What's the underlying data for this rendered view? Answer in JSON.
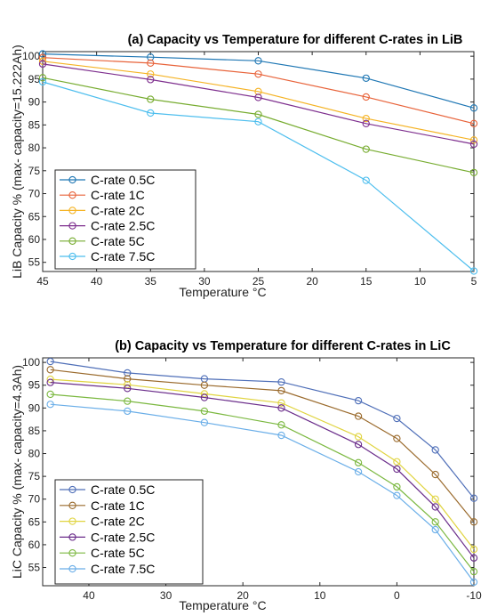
{
  "chart_data": [
    {
      "type": "line",
      "title": "(a) Capacity vs Temperature for different C-rates in LiB",
      "xlabel": "Temperature °C",
      "ylabel": "LiB Capacity % (max- capacity=15.222Ah)",
      "x": [
        45,
        35,
        25,
        15,
        5
      ],
      "xlim": [
        45,
        5
      ],
      "ylim": [
        53,
        101
      ],
      "xticks": [
        45,
        40,
        35,
        30,
        25,
        20,
        15,
        10,
        5
      ],
      "yticks": [
        55,
        60,
        65,
        70,
        75,
        80,
        85,
        90,
        95,
        100
      ],
      "legend_position": "bottom-left",
      "grid": false,
      "series": [
        {
          "name": "C-rate 0.5C",
          "color": "#1f77b4",
          "values": [
            100.5,
            99.8,
            99.0,
            95.2,
            88.7
          ]
        },
        {
          "name": "C-rate 1C",
          "color": "#e8633a",
          "values": [
            99.7,
            98.5,
            96.1,
            91.1,
            85.3
          ]
        },
        {
          "name": "C-rate 2C",
          "color": "#f5b324",
          "values": [
            98.9,
            96.1,
            92.3,
            86.4,
            81.7
          ]
        },
        {
          "name": "C-rate 2.5C",
          "color": "#7e2f8e",
          "values": [
            98.3,
            94.9,
            91.0,
            85.3,
            80.8
          ]
        },
        {
          "name": "C-rate 5C",
          "color": "#77ac30",
          "values": [
            95.3,
            90.6,
            87.3,
            79.7,
            74.6
          ]
        },
        {
          "name": "C-rate 7.5C",
          "color": "#4dbeee",
          "values": [
            94.4,
            87.6,
            85.7,
            72.9,
            53.1
          ]
        }
      ]
    },
    {
      "type": "line",
      "title": "(b) Capacity vs Temperature for different C-rates in LiC",
      "xlabel": "Temperature °C",
      "ylabel": "LiC Capacity % (max- capacity=4.3Ah)",
      "x": [
        45,
        35,
        25,
        15,
        5,
        0,
        -5,
        -10
      ],
      "xlim": [
        46,
        -10
      ],
      "ylim": [
        51,
        101
      ],
      "xticks": [
        40,
        30,
        20,
        10,
        0,
        -10
      ],
      "yticks": [
        55,
        60,
        65,
        70,
        75,
        80,
        85,
        90,
        95,
        100
      ],
      "legend_position": "bottom-left",
      "grid": false,
      "series": [
        {
          "name": "C-rate 0.5C",
          "color": "#4f6fb8",
          "values": [
            100.2,
            97.7,
            96.4,
            95.7,
            91.6,
            87.7,
            80.8,
            70.2
          ]
        },
        {
          "name": "C-rate 1C",
          "color": "#9a6a2c",
          "values": [
            98.4,
            96.4,
            95.0,
            93.8,
            88.2,
            83.3,
            75.4,
            65.0
          ]
        },
        {
          "name": "C-rate 2C",
          "color": "#e0d440",
          "values": [
            96.3,
            95.1,
            93.1,
            91.1,
            83.7,
            78.2,
            70.0,
            59.0
          ]
        },
        {
          "name": "C-rate 2.5C",
          "color": "#6a2c8a",
          "values": [
            95.6,
            94.3,
            92.3,
            90.0,
            82.0,
            76.6,
            68.3,
            57.1
          ]
        },
        {
          "name": "C-rate 5C",
          "color": "#7bb840",
          "values": [
            93.0,
            91.5,
            89.3,
            86.3,
            78.0,
            72.7,
            65.0,
            54.1
          ]
        },
        {
          "name": "C-rate 7.5C",
          "color": "#6aaee8",
          "values": [
            90.8,
            89.3,
            86.8,
            84.0,
            76.0,
            70.8,
            63.3,
            51.8
          ]
        }
      ]
    }
  ]
}
